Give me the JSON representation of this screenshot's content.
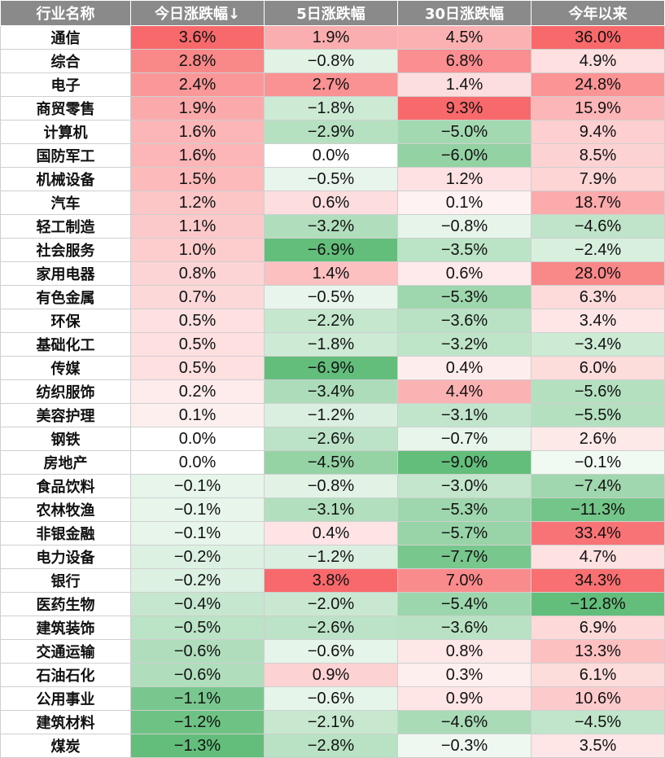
{
  "table": {
    "headers": [
      "行业名称",
      "今日涨跌幅↓",
      "5日涨跌幅",
      "30日涨跌幅",
      "今年以来"
    ],
    "rows": [
      {
        "name": "通信",
        "today": "3.6%",
        "d5": "1.9%",
        "d30": "4.5%",
        "ytd": "36.0%"
      },
      {
        "name": "综合",
        "today": "2.8%",
        "d5": "−0.8%",
        "d30": "6.8%",
        "ytd": "4.9%"
      },
      {
        "name": "电子",
        "today": "2.4%",
        "d5": "2.7%",
        "d30": "1.4%",
        "ytd": "24.8%"
      },
      {
        "name": "商贸零售",
        "today": "1.9%",
        "d5": "−1.8%",
        "d30": "9.3%",
        "ytd": "15.9%"
      },
      {
        "name": "计算机",
        "today": "1.6%",
        "d5": "−2.9%",
        "d30": "−5.0%",
        "ytd": "9.4%"
      },
      {
        "name": "国防军工",
        "today": "1.6%",
        "d5": "0.0%",
        "d30": "−6.0%",
        "ytd": "8.5%"
      },
      {
        "name": "机械设备",
        "today": "1.5%",
        "d5": "−0.5%",
        "d30": "1.2%",
        "ytd": "7.9%"
      },
      {
        "name": "汽车",
        "today": "1.2%",
        "d5": "0.6%",
        "d30": "0.1%",
        "ytd": "18.7%"
      },
      {
        "name": "轻工制造",
        "today": "1.1%",
        "d5": "−3.2%",
        "d30": "−0.8%",
        "ytd": "−4.6%"
      },
      {
        "name": "社会服务",
        "today": "1.0%",
        "d5": "−6.9%",
        "d30": "−3.5%",
        "ytd": "−2.4%"
      },
      {
        "name": "家用电器",
        "today": "0.8%",
        "d5": "1.4%",
        "d30": "0.6%",
        "ytd": "28.0%"
      },
      {
        "name": "有色金属",
        "today": "0.7%",
        "d5": "−0.5%",
        "d30": "−5.3%",
        "ytd": "6.3%"
      },
      {
        "name": "环保",
        "today": "0.5%",
        "d5": "−2.2%",
        "d30": "−3.6%",
        "ytd": "3.4%"
      },
      {
        "name": "基础化工",
        "today": "0.5%",
        "d5": "−1.8%",
        "d30": "−3.2%",
        "ytd": "−3.4%"
      },
      {
        "name": "传媒",
        "today": "0.5%",
        "d5": "−6.9%",
        "d30": "0.4%",
        "ytd": "6.0%"
      },
      {
        "name": "纺织服饰",
        "today": "0.2%",
        "d5": "−3.4%",
        "d30": "4.4%",
        "ytd": "−5.6%"
      },
      {
        "name": "美容护理",
        "today": "0.1%",
        "d5": "−1.2%",
        "d30": "−3.1%",
        "ytd": "−5.5%"
      },
      {
        "name": "钢铁",
        "today": "0.0%",
        "d5": "−2.6%",
        "d30": "−0.7%",
        "ytd": "2.6%"
      },
      {
        "name": "房地产",
        "today": "0.0%",
        "d5": "−4.5%",
        "d30": "−9.0%",
        "ytd": "−0.1%"
      },
      {
        "name": "食品饮料",
        "today": "−0.1%",
        "d5": "−0.8%",
        "d30": "−3.0%",
        "ytd": "−7.4%"
      },
      {
        "name": "农林牧渔",
        "today": "−0.1%",
        "d5": "−3.1%",
        "d30": "−5.3%",
        "ytd": "−11.3%"
      },
      {
        "name": "非银金融",
        "today": "−0.1%",
        "d5": "0.4%",
        "d30": "−5.7%",
        "ytd": "33.4%"
      },
      {
        "name": "电力设备",
        "today": "−0.2%",
        "d5": "−1.2%",
        "d30": "−7.7%",
        "ytd": "4.7%"
      },
      {
        "name": "银行",
        "today": "−0.2%",
        "d5": "3.8%",
        "d30": "7.0%",
        "ytd": "34.3%"
      },
      {
        "name": "医药生物",
        "today": "−0.4%",
        "d5": "−2.0%",
        "d30": "−5.4%",
        "ytd": "−12.8%"
      },
      {
        "name": "建筑装饰",
        "today": "−0.5%",
        "d5": "−2.6%",
        "d30": "−3.6%",
        "ytd": "6.9%"
      },
      {
        "name": "交通运输",
        "today": "−0.6%",
        "d5": "−0.6%",
        "d30": "0.8%",
        "ytd": "13.3%"
      },
      {
        "name": "石油石化",
        "today": "−0.6%",
        "d5": "0.9%",
        "d30": "0.3%",
        "ytd": "6.1%"
      },
      {
        "name": "公用事业",
        "today": "−1.1%",
        "d5": "−0.6%",
        "d30": "0.9%",
        "ytd": "10.6%"
      },
      {
        "name": "建筑材料",
        "today": "−1.2%",
        "d5": "−2.1%",
        "d30": "−4.6%",
        "ytd": "−4.5%"
      },
      {
        "name": "煤炭",
        "today": "−1.3%",
        "d5": "−2.8%",
        "d30": "−0.3%",
        "ytd": "3.5%"
      }
    ]
  },
  "chart_data": {
    "type": "heatmap",
    "row_labels": [
      "通信",
      "综合",
      "电子",
      "商贸零售",
      "计算机",
      "国防军工",
      "机械设备",
      "汽车",
      "轻工制造",
      "社会服务",
      "家用电器",
      "有色金属",
      "环保",
      "基础化工",
      "传媒",
      "纺织服饰",
      "美容护理",
      "钢铁",
      "房地产",
      "食品饮料",
      "农林牧渔",
      "非银金融",
      "电力设备",
      "银行",
      "医药生物",
      "建筑装饰",
      "交通运输",
      "石油石化",
      "公用事业",
      "建筑材料",
      "煤炭"
    ],
    "column_labels": [
      "今日涨跌幅↓",
      "5日涨跌幅",
      "30日涨跌幅",
      "今年以来"
    ],
    "values": [
      [
        3.6,
        1.9,
        4.5,
        36.0
      ],
      [
        2.8,
        -0.8,
        6.8,
        4.9
      ],
      [
        2.4,
        2.7,
        1.4,
        24.8
      ],
      [
        1.9,
        -1.8,
        9.3,
        15.9
      ],
      [
        1.6,
        -2.9,
        -5.0,
        9.4
      ],
      [
        1.6,
        0.0,
        -6.0,
        8.5
      ],
      [
        1.5,
        -0.5,
        1.2,
        7.9
      ],
      [
        1.2,
        0.6,
        0.1,
        18.7
      ],
      [
        1.1,
        -3.2,
        -0.8,
        -4.6
      ],
      [
        1.0,
        -6.9,
        -3.5,
        -2.4
      ],
      [
        0.8,
        1.4,
        0.6,
        28.0
      ],
      [
        0.7,
        -0.5,
        -5.3,
        6.3
      ],
      [
        0.5,
        -2.2,
        -3.6,
        3.4
      ],
      [
        0.5,
        -1.8,
        -3.2,
        -3.4
      ],
      [
        0.5,
        -6.9,
        0.4,
        6.0
      ],
      [
        0.2,
        -3.4,
        4.4,
        -5.6
      ],
      [
        0.1,
        -1.2,
        -3.1,
        -5.5
      ],
      [
        0.0,
        -2.6,
        -0.7,
        2.6
      ],
      [
        0.0,
        -4.5,
        -9.0,
        -0.1
      ],
      [
        -0.1,
        -0.8,
        -3.0,
        -7.4
      ],
      [
        -0.1,
        -3.1,
        -5.3,
        -11.3
      ],
      [
        -0.1,
        0.4,
        -5.7,
        33.4
      ],
      [
        -0.2,
        -1.2,
        -7.7,
        4.7
      ],
      [
        -0.2,
        3.8,
        7.0,
        34.3
      ],
      [
        -0.4,
        -2.0,
        -5.4,
        -12.8
      ],
      [
        -0.5,
        -2.6,
        -3.6,
        6.9
      ],
      [
        -0.6,
        -0.6,
        0.8,
        13.3
      ],
      [
        -0.6,
        0.9,
        0.3,
        6.1
      ],
      [
        -1.1,
        -0.6,
        0.9,
        10.6
      ],
      [
        -1.2,
        -2.1,
        -4.6,
        -4.5
      ],
      [
        -1.3,
        -2.8,
        -0.3,
        3.5
      ]
    ],
    "unit": "%",
    "colors": {
      "positive_max": "#f8696b",
      "negative_max": "#63be7b",
      "neutral": "#ffffff",
      "header_bg": "#8a8a8a",
      "header_text": "#ffffff"
    }
  }
}
